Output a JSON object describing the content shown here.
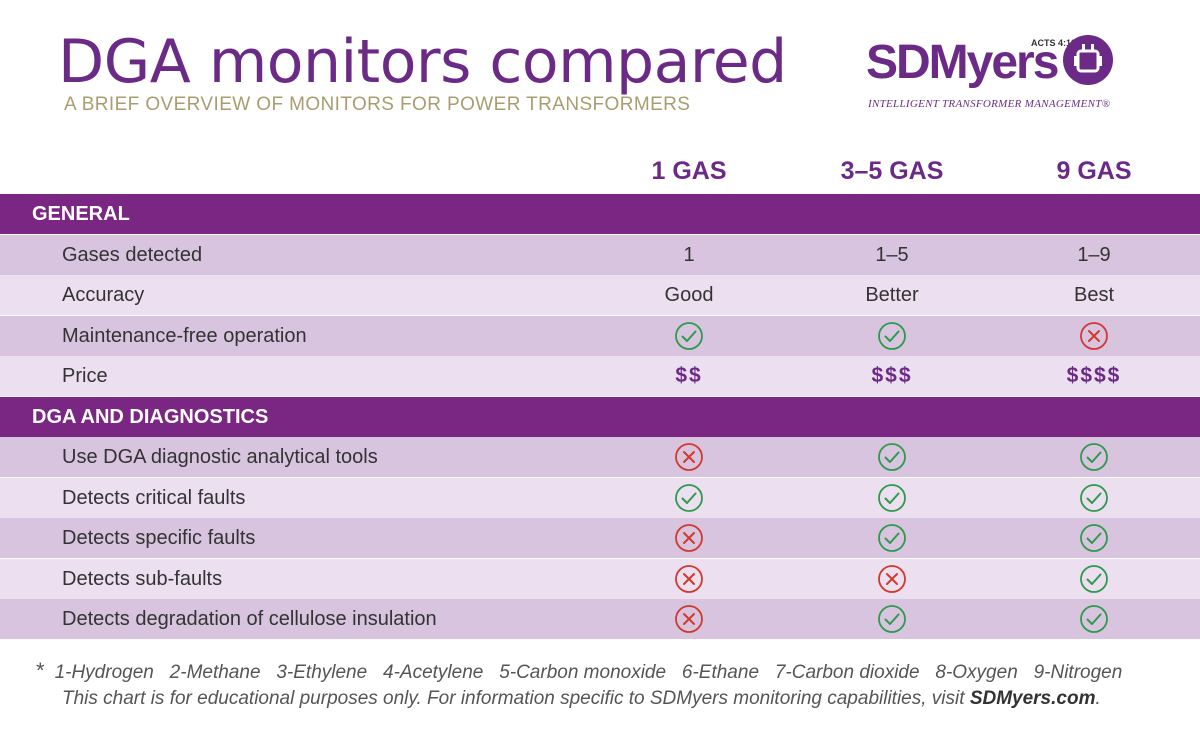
{
  "title": "DGA monitors compared",
  "subtitle": "A BRIEF OVERVIEW OF MONITORS FOR POWER TRANSFORMERS",
  "logo": {
    "name": "SDMyers",
    "verse": "ACTS 4:12",
    "tagline": "INTELLIGENT TRANSFORMER MANAGEMENT®"
  },
  "columns": [
    "1 GAS",
    "3–5 GAS",
    "9 GAS"
  ],
  "sections": [
    {
      "title": "GENERAL",
      "rows": [
        {
          "label": "Gases detected",
          "values": [
            "1",
            "1–5",
            "1–9"
          ]
        },
        {
          "label": "Accuracy",
          "values": [
            "Good",
            "Better",
            "Best"
          ]
        },
        {
          "label": "Maintenance-free operation",
          "icons": [
            "check",
            "check",
            "cross"
          ]
        },
        {
          "label": "Price",
          "values": [
            "$$",
            "$$$",
            "$$$$"
          ]
        }
      ]
    },
    {
      "title": "DGA AND DIAGNOSTICS",
      "rows": [
        {
          "label": "Use DGA diagnostic analytical tools",
          "icons": [
            "cross",
            "check",
            "check"
          ]
        },
        {
          "label": "Detects critical faults",
          "icons": [
            "check",
            "check",
            "check"
          ]
        },
        {
          "label": "Detects specific faults",
          "icons": [
            "cross",
            "check",
            "check"
          ]
        },
        {
          "label": "Detects sub-faults",
          "icons": [
            "cross",
            "cross",
            "check"
          ]
        },
        {
          "label": "Detects degradation of cellulose insulation",
          "icons": [
            "cross",
            "check",
            "check"
          ]
        }
      ]
    }
  ],
  "footnote": {
    "star": "*",
    "gases": "1-Hydrogen   2-Methane   3-Ethylene   4-Acetylene   5-Carbon monoxide   6-Ethane   7-Carbon dioxide   8-Oxygen   9-Nitrogen",
    "disclaimer": "This chart is for educational purposes only. For information specific to SDMyers monitoring capabilities, visit ",
    "link": "SDMyers.com",
    "end": "."
  },
  "colors": {
    "brand": "#6b2a86",
    "section": "#7a2683",
    "check": "#2e9a4d",
    "cross": "#d0392b"
  }
}
